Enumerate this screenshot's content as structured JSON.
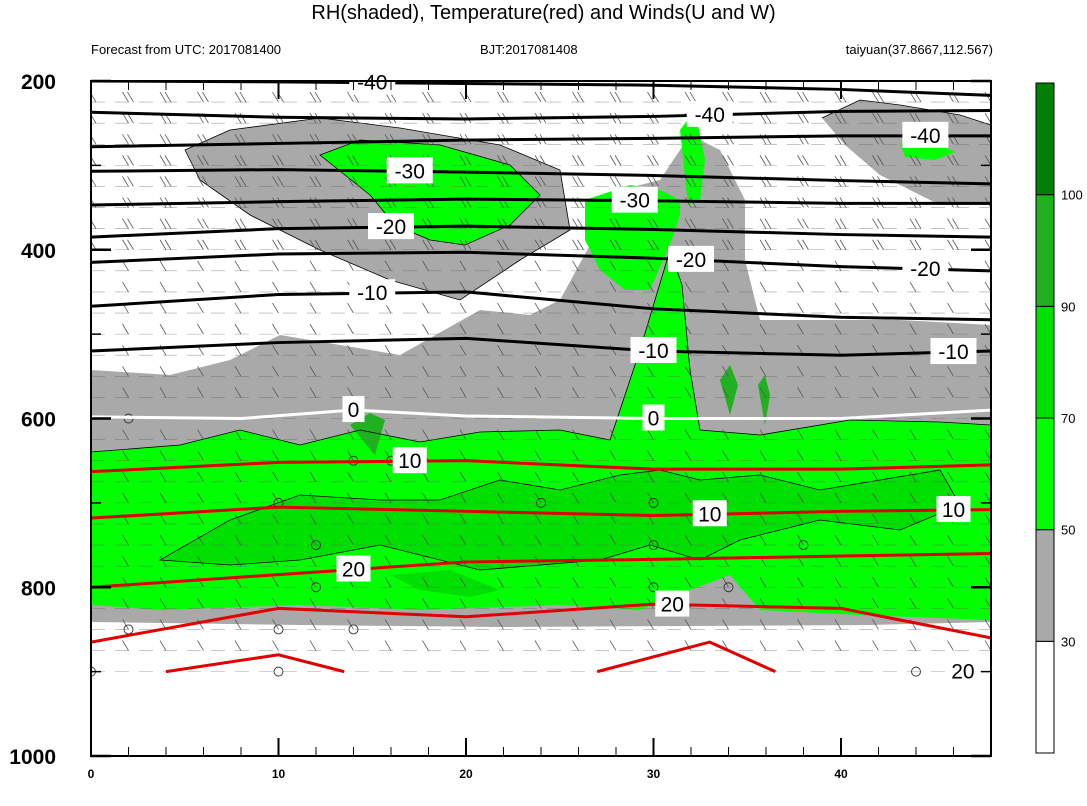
{
  "header": {
    "title": "RH(shaded), Temperature(red) and Winds(U and W)",
    "left_text": "Forecast from UTC: 2017081400",
    "center_text": "BJT:2017081408",
    "right_text": "taiyuan(37.8667,112.567)"
  },
  "chart_data": {
    "type": "heatmap",
    "title": "RH(shaded), Temperature(red) and Winds(U and W)",
    "x_axis": {
      "ticks": [
        0,
        10,
        20,
        30,
        40
      ],
      "range": [
        0,
        48
      ]
    },
    "y_axis": {
      "ticks": [
        200,
        400,
        600,
        800,
        1000
      ],
      "range": [
        200,
        1000
      ],
      "inverted": true
    },
    "colorbar": {
      "levels": [
        30,
        50,
        70,
        90,
        100
      ],
      "colors": [
        "#ffffff",
        "#a9a9a9",
        "#00ff00",
        "#00e000",
        "#20b020",
        "#008000"
      ],
      "placement": "right"
    },
    "temperature_contours": [
      {
        "value": -40,
        "color": "#000000",
        "labels": [
          {
            "x": 15,
            "text": "-40"
          },
          {
            "x": 33,
            "text": "-40"
          },
          {
            "x": 44.5,
            "text": "-40"
          }
        ],
        "lines": [
          {
            "x": [
              0,
              10,
              20,
              30,
              40,
              48
            ],
            "y": [
              200,
              201,
              203,
              205,
              210,
              217
            ]
          },
          {
            "x": [
              0,
              10,
              20,
              30,
              40,
              48
            ],
            "y": [
              237,
              243,
              245,
              242,
              236,
              235
            ]
          },
          {
            "x": [
              0,
              10,
              20,
              30,
              40,
              48
            ],
            "y": [
              278,
              274,
              270,
              268,
              265,
              265
            ]
          }
        ]
      },
      {
        "value": -30,
        "color": "#000000",
        "labels": [
          {
            "x": 17,
            "text": "-30"
          },
          {
            "x": 29,
            "text": "-30"
          }
        ],
        "lines": [
          {
            "x": [
              0,
              10,
              20,
              30,
              40,
              48
            ],
            "y": [
              307,
              305,
              308,
              312,
              318,
              322
            ]
          },
          {
            "x": [
              0,
              10,
              20,
              30,
              40,
              48
            ],
            "y": [
              347,
              343,
              340,
              342,
              345,
              345
            ]
          }
        ]
      },
      {
        "value": -20,
        "color": "#000000",
        "labels": [
          {
            "x": 16,
            "text": "-20"
          },
          {
            "x": 32,
            "text": "-20"
          },
          {
            "x": 44.5,
            "text": "-20"
          }
        ],
        "lines": [
          {
            "x": [
              0,
              10,
              20,
              30,
              40,
              48
            ],
            "y": [
              385,
              375,
              372,
              376,
              382,
              385
            ]
          },
          {
            "x": [
              0,
              10,
              20,
              30,
              40,
              48
            ],
            "y": [
              415,
              405,
              403,
              410,
              420,
              425
            ]
          }
        ]
      },
      {
        "value": -10,
        "color": "#000000",
        "labels": [
          {
            "x": 15,
            "text": "-10"
          },
          {
            "x": 30,
            "text": "-10"
          },
          {
            "x": 46,
            "text": "-10"
          }
        ],
        "lines": [
          {
            "x": [
              0,
              10,
              20,
              30,
              40,
              48
            ],
            "y": [
              467,
              453,
              450,
              470,
              480,
              483
            ]
          },
          {
            "x": [
              0,
              10,
              20,
              30,
              40,
              48
            ],
            "y": [
              520,
              510,
              505,
              520,
              525,
              520
            ]
          }
        ]
      },
      {
        "value": 0,
        "color": "#ffffff",
        "labels": [
          {
            "x": 14,
            "text": "0"
          },
          {
            "x": 30,
            "text": "0"
          }
        ],
        "lines": [
          {
            "x": [
              0,
              8,
              14,
              20,
              30,
              40,
              48
            ],
            "y": [
              598,
              600,
              590,
              597,
              600,
              600,
              590
            ]
          }
        ]
      },
      {
        "value": 10,
        "color": "#e00000",
        "labels": [
          {
            "x": 17,
            "text": "10"
          },
          {
            "x": 33,
            "text": "10"
          },
          {
            "x": 46,
            "text": "10"
          }
        ],
        "lines": [
          {
            "x": [
              0,
              10,
              20,
              30,
              40,
              48
            ],
            "y": [
              663,
              652,
              650,
              660,
              660,
              655
            ]
          },
          {
            "x": [
              0,
              10,
              20,
              30,
              40,
              48
            ],
            "y": [
              718,
              705,
              710,
              715,
              710,
              708
            ]
          }
        ]
      },
      {
        "value": 20,
        "color": "#e00000",
        "labels": [
          {
            "x": 14,
            "text": "20"
          },
          {
            "x": 31,
            "text": "20"
          },
          {
            "x": 46.5,
            "text": "20"
          }
        ],
        "lines": [
          {
            "x": [
              0,
              10,
              20,
              30,
              40,
              48
            ],
            "y": [
              800,
              785,
              770,
              767,
              763,
              760
            ]
          },
          {
            "x": [
              0,
              10,
              20,
              30,
              40,
              48
            ],
            "y": [
              865,
              825,
              835,
              820,
              825,
              860
            ]
          },
          {
            "x": [
              4,
              10,
              13.5
            ],
            "y": [
              900,
              880,
              900
            ]
          },
          {
            "x": [
              27,
              33,
              36.5
            ],
            "y": [
              900,
              865,
              900
            ]
          }
        ]
      }
    ]
  }
}
